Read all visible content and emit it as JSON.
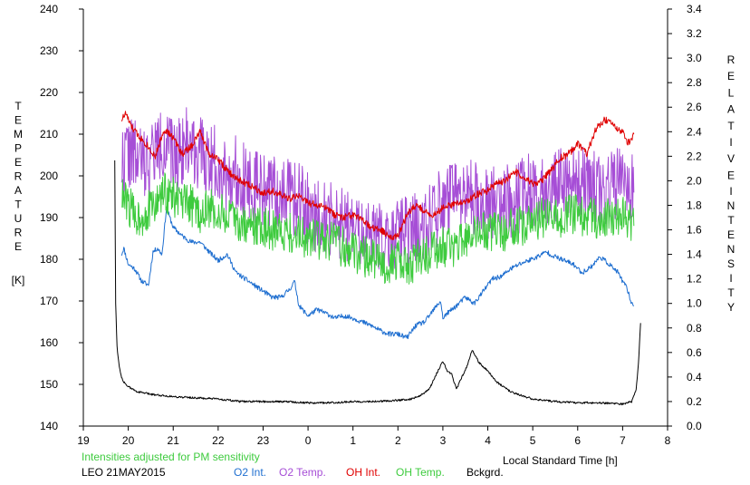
{
  "chart_data": {
    "type": "line",
    "title": "",
    "xlabel": "Local Standard Time [h]",
    "ylabel_left_letters": [
      "T",
      "E",
      "M",
      "P",
      "E",
      "R",
      "A",
      "T",
      "U",
      "R",
      "E"
    ],
    "ylabel_left_unit": "[K]",
    "ylabel_right_top_letters": [
      "R",
      "E",
      "L",
      "A",
      "T",
      "I",
      "V",
      "E"
    ],
    "ylabel_right_bottom_letters": [
      "I",
      "N",
      "T",
      "E",
      "N",
      "S",
      "I",
      "T",
      "Y"
    ],
    "xlim": [
      19,
      32
    ],
    "ylim_left": [
      140,
      240
    ],
    "ylim_right": [
      0,
      3.4
    ],
    "x_tick_values": [
      19,
      20,
      21,
      22,
      23,
      24,
      25,
      26,
      27,
      28,
      29,
      30,
      31,
      32
    ],
    "x_tick_labels": [
      "19",
      "20",
      "21",
      "22",
      "23",
      "0",
      "1",
      "2",
      "3",
      "4",
      "5",
      "6",
      "7",
      "8"
    ],
    "y_left_ticks": [
      140,
      150,
      160,
      170,
      180,
      190,
      200,
      210,
      220,
      230,
      240
    ],
    "y_right_ticks": [
      "0.0",
      "0.2",
      "0.4",
      "0.6",
      "0.8",
      "1.0",
      "1.2",
      "1.4",
      "1.6",
      "1.8",
      "2.0",
      "2.2",
      "2.4",
      "2.6",
      "2.8",
      "3.0",
      "3.2",
      "3.4"
    ],
    "note": "Intensities adjusted for PM sensitivity",
    "station_date": "LEO 21MAY2015",
    "grid": false,
    "legend_placement": "bottom",
    "series": [
      {
        "name": "O2 Int.",
        "axis": "right",
        "color": "#1f6fd0",
        "noise": 0.02,
        "seed": 11,
        "x": [
          19.85,
          19.9,
          20.0,
          20.15,
          20.3,
          20.45,
          20.55,
          20.65,
          20.75,
          20.85,
          21.0,
          21.2,
          21.4,
          21.6,
          21.8,
          22.0,
          22.2,
          22.4,
          22.6,
          22.8,
          23.0,
          23.2,
          23.4,
          23.6,
          23.7,
          23.8,
          24.0,
          24.2,
          24.4,
          24.6,
          24.8,
          25.0,
          25.2,
          25.4,
          25.6,
          25.8,
          26.0,
          26.2,
          26.4,
          26.6,
          26.8,
          26.95,
          27.0,
          27.1,
          27.3,
          27.5,
          27.7,
          27.9,
          28.1,
          28.3,
          28.5,
          28.7,
          28.9,
          29.1,
          29.3,
          29.5,
          29.7,
          29.9,
          30.1,
          30.3,
          30.5,
          30.7,
          30.9,
          31.0,
          31.1,
          31.2,
          31.25
        ],
        "y": [
          1.4,
          1.45,
          1.32,
          1.28,
          1.18,
          1.15,
          1.42,
          1.45,
          1.4,
          1.78,
          1.62,
          1.55,
          1.5,
          1.5,
          1.42,
          1.35,
          1.4,
          1.25,
          1.2,
          1.15,
          1.1,
          1.05,
          1.05,
          1.12,
          1.18,
          0.98,
          0.9,
          0.95,
          0.92,
          0.88,
          0.9,
          0.88,
          0.85,
          0.82,
          0.78,
          0.75,
          0.75,
          0.72,
          0.82,
          0.85,
          0.95,
          1.02,
          0.88,
          0.92,
          0.98,
          1.05,
          1.0,
          1.1,
          1.2,
          1.22,
          1.28,
          1.32,
          1.35,
          1.38,
          1.42,
          1.38,
          1.35,
          1.32,
          1.25,
          1.3,
          1.38,
          1.32,
          1.25,
          1.18,
          1.12,
          1.0,
          0.98
        ]
      },
      {
        "name": "O2 Temp.",
        "axis": "left",
        "color": "#a64ed6",
        "noise": 9,
        "seed": 22,
        "x": [
          19.85,
          20.0,
          20.2,
          20.4,
          20.6,
          20.8,
          21.0,
          21.2,
          21.4,
          21.6,
          21.8,
          22.0,
          22.2,
          22.4,
          22.6,
          22.8,
          23.0,
          23.2,
          23.4,
          23.6,
          23.8,
          24.0,
          24.2,
          24.4,
          24.6,
          24.8,
          25.0,
          25.2,
          25.4,
          25.6,
          25.8,
          26.0,
          26.2,
          26.4,
          26.6,
          26.8,
          27.0,
          27.2,
          27.4,
          27.6,
          27.8,
          28.0,
          28.2,
          28.4,
          28.6,
          28.8,
          29.0,
          29.2,
          29.4,
          29.6,
          29.8,
          30.0,
          30.2,
          30.4,
          30.6,
          30.8,
          31.0,
          31.2,
          31.25
        ],
        "y": [
          203,
          206,
          204,
          203,
          206,
          208,
          204,
          207,
          208,
          205,
          204,
          203,
          200,
          201,
          199,
          197,
          197,
          196,
          196,
          195,
          194,
          192,
          190,
          190,
          189,
          188,
          187,
          186,
          186,
          185,
          186,
          186,
          186,
          187,
          189,
          191,
          193,
          194,
          194,
          195,
          194,
          194,
          193,
          194,
          194,
          196,
          197,
          197,
          198,
          198,
          199,
          199,
          198,
          197,
          197,
          198,
          198,
          197,
          196
        ]
      },
      {
        "name": "OH Int.",
        "axis": "right",
        "color": "#e00000",
        "noise": 0.03,
        "seed": 33,
        "x": [
          19.85,
          19.95,
          20.05,
          20.2,
          20.4,
          20.6,
          20.8,
          21.0,
          21.2,
          21.4,
          21.6,
          21.8,
          22.0,
          22.2,
          22.4,
          22.6,
          22.8,
          23.0,
          23.2,
          23.4,
          23.6,
          23.8,
          24.0,
          24.2,
          24.4,
          24.6,
          24.8,
          25.0,
          25.2,
          25.4,
          25.6,
          25.8,
          26.0,
          26.2,
          26.4,
          26.6,
          26.8,
          27.0,
          27.2,
          27.4,
          27.6,
          27.8,
          28.0,
          28.2,
          28.4,
          28.6,
          28.8,
          29.0,
          29.2,
          29.4,
          29.6,
          29.8,
          30.0,
          30.2,
          30.4,
          30.6,
          30.8,
          31.0,
          31.1,
          31.2,
          31.25
        ],
        "y": [
          2.5,
          2.55,
          2.45,
          2.38,
          2.3,
          2.2,
          2.42,
          2.35,
          2.22,
          2.28,
          2.4,
          2.22,
          2.18,
          2.08,
          2.02,
          1.98,
          1.95,
          1.9,
          1.92,
          1.88,
          1.85,
          1.88,
          1.82,
          1.8,
          1.78,
          1.72,
          1.7,
          1.72,
          1.68,
          1.62,
          1.6,
          1.55,
          1.55,
          1.72,
          1.8,
          1.75,
          1.72,
          1.78,
          1.8,
          1.82,
          1.85,
          1.9,
          1.92,
          1.98,
          2.0,
          2.08,
          2.02,
          1.98,
          2.0,
          2.08,
          2.18,
          2.22,
          2.3,
          2.22,
          2.42,
          2.5,
          2.45,
          2.4,
          2.3,
          2.35,
          2.38
        ]
      },
      {
        "name": "OH Temp.",
        "axis": "left",
        "color": "#3ecb3e",
        "noise": 5,
        "seed": 44,
        "x": [
          19.85,
          20.0,
          20.2,
          20.4,
          20.6,
          20.8,
          21.0,
          21.2,
          21.4,
          21.6,
          21.8,
          22.0,
          22.2,
          22.4,
          22.6,
          22.8,
          23.0,
          23.2,
          23.4,
          23.6,
          23.8,
          24.0,
          24.2,
          24.4,
          24.6,
          24.8,
          25.0,
          25.2,
          25.4,
          25.6,
          25.8,
          26.0,
          26.2,
          26.4,
          26.6,
          26.8,
          27.0,
          27.2,
          27.4,
          27.6,
          27.8,
          28.0,
          28.2,
          28.4,
          28.6,
          28.8,
          29.0,
          29.2,
          29.4,
          29.6,
          29.8,
          30.0,
          30.2,
          30.4,
          30.6,
          30.8,
          31.0,
          31.2,
          31.25
        ],
        "y": [
          195,
          193,
          190,
          191,
          193,
          196,
          195,
          193,
          193,
          191,
          192,
          191,
          190,
          189,
          188,
          188,
          188,
          187,
          187,
          186,
          186,
          185,
          185,
          184,
          184,
          183,
          182,
          181,
          180,
          179,
          179,
          180,
          178,
          180,
          181,
          182,
          183,
          183,
          184,
          185,
          186,
          187,
          186,
          187,
          188,
          188,
          189,
          190,
          190,
          190,
          191,
          191,
          190,
          190,
          190,
          190,
          190,
          189,
          188
        ]
      },
      {
        "name": "Bckgrd.",
        "axis": "right",
        "color": "#000000",
        "noise": 0.008,
        "seed": 55,
        "x": [
          19.7,
          19.72,
          19.75,
          19.8,
          19.85,
          19.9,
          20.0,
          20.2,
          20.5,
          21.0,
          21.5,
          22.0,
          22.5,
          23.0,
          23.5,
          24.0,
          24.5,
          25.0,
          25.5,
          26.0,
          26.3,
          26.5,
          26.7,
          26.85,
          27.0,
          27.1,
          27.2,
          27.3,
          27.45,
          27.55,
          27.65,
          27.8,
          28.0,
          28.2,
          28.5,
          29.0,
          29.5,
          30.0,
          30.5,
          31.0,
          31.1,
          31.2,
          31.3,
          31.35,
          31.4
        ],
        "y": [
          2.17,
          1.0,
          0.65,
          0.48,
          0.4,
          0.36,
          0.32,
          0.28,
          0.26,
          0.24,
          0.23,
          0.22,
          0.2,
          0.2,
          0.2,
          0.19,
          0.19,
          0.2,
          0.2,
          0.21,
          0.22,
          0.25,
          0.3,
          0.42,
          0.53,
          0.45,
          0.42,
          0.3,
          0.42,
          0.5,
          0.62,
          0.52,
          0.45,
          0.36,
          0.28,
          0.22,
          0.2,
          0.19,
          0.19,
          0.18,
          0.19,
          0.2,
          0.3,
          0.5,
          0.84
        ]
      }
    ]
  }
}
